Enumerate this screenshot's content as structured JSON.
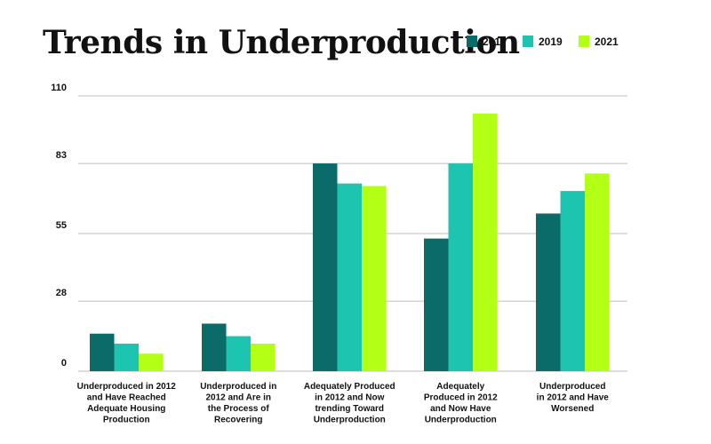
{
  "chart_data": {
    "type": "bar",
    "title": "Trends in Underproduction",
    "xlabel": "",
    "ylabel": "",
    "ylim": [
      0,
      110
    ],
    "yticks": [
      0,
      28,
      55,
      83,
      110
    ],
    "grid": true,
    "legend_position": "top-right",
    "categories": [
      [
        "Underproduced in 2012",
        "and Have Reached",
        "Adequate Housing",
        "Production"
      ],
      [
        "Underproduced in",
        "2012 and Are in",
        "the Process of",
        "Recovering"
      ],
      [
        "Adequately Produced",
        "in 2012 and Now",
        "trending Toward",
        "Underproduction"
      ],
      [
        "Adequately",
        "Produced in 2012",
        "and Now Have",
        "Underproduction"
      ],
      [
        "Underproduced",
        "in 2012 and Have",
        "Worsened"
      ]
    ],
    "series": [
      {
        "name": "2017",
        "color": "#0b6b68",
        "values": [
          15,
          19,
          83,
          53,
          63
        ]
      },
      {
        "name": "2019",
        "color": "#1dc4b0",
        "values": [
          11,
          14,
          75,
          83,
          72
        ]
      },
      {
        "name": "2021",
        "color": "#b4ff16",
        "values": [
          7,
          11,
          74,
          103,
          79
        ]
      }
    ]
  }
}
